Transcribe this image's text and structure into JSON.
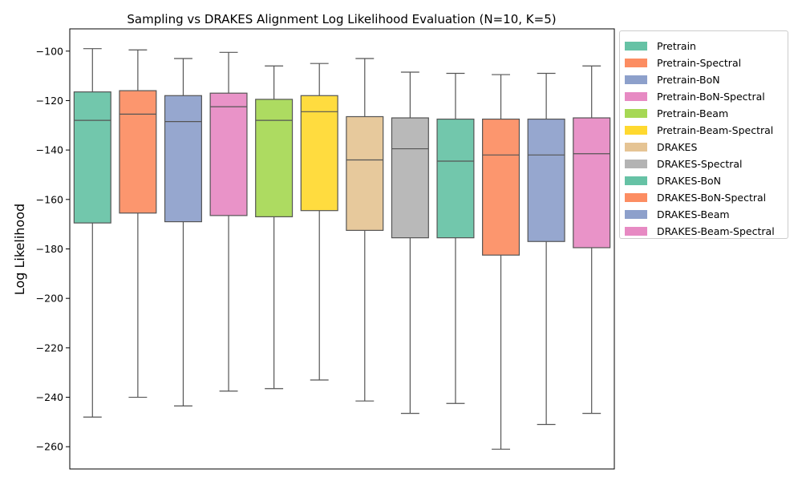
{
  "chart_data": {
    "type": "box",
    "title": "Sampling vs DRAKES Alignment Log Likelihood Evaluation (N=10, K=5)",
    "xlabel": "",
    "ylabel": "Log Likelihood",
    "ylim": [
      -269,
      -91
    ],
    "yticks": [
      -100,
      -120,
      -140,
      -160,
      -180,
      -200,
      -220,
      -240,
      -260
    ],
    "ytick_labels": [
      "−100",
      "−120",
      "−140",
      "−160",
      "−180",
      "−200",
      "−220",
      "−240",
      "−260"
    ],
    "grid": false,
    "legend_position": "outside-top-right",
    "series": [
      {
        "name": "Pretrain",
        "color": "#66c2a5",
        "whisker_low": -248,
        "q1": -169.5,
        "median": -128,
        "q3": -116.5,
        "whisker_high": -99
      },
      {
        "name": "Pretrain-Spectral",
        "color": "#fc8d62",
        "whisker_low": -240,
        "q1": -165.5,
        "median": -125.5,
        "q3": -116,
        "whisker_high": -99.5
      },
      {
        "name": "Pretrain-BoN",
        "color": "#8da0cb",
        "whisker_low": -243.5,
        "q1": -169,
        "median": -128.5,
        "q3": -118,
        "whisker_high": -103
      },
      {
        "name": "Pretrain-BoN-Spectral",
        "color": "#e78ac3",
        "whisker_low": -237.5,
        "q1": -166.5,
        "median": -122.5,
        "q3": -117,
        "whisker_high": -100.5
      },
      {
        "name": "Pretrain-Beam",
        "color": "#a6d854",
        "whisker_low": -236.5,
        "q1": -167,
        "median": -128,
        "q3": -119.5,
        "whisker_high": -106
      },
      {
        "name": "Pretrain-Beam-Spectral",
        "color": "#ffd92f",
        "whisker_low": -233,
        "q1": -164.5,
        "median": -124.5,
        "q3": -118,
        "whisker_high": -105
      },
      {
        "name": "DRAKES",
        "color": "#e5c494",
        "whisker_low": -241.5,
        "q1": -172.5,
        "median": -144,
        "q3": -126.5,
        "whisker_high": -103
      },
      {
        "name": "DRAKES-Spectral",
        "color": "#b3b3b3",
        "whisker_low": -246.5,
        "q1": -175.5,
        "median": -139.5,
        "q3": -127,
        "whisker_high": -108.5
      },
      {
        "name": "DRAKES-BoN",
        "color": "#66c2a5",
        "whisker_low": -242.5,
        "q1": -175.5,
        "median": -144.5,
        "q3": -127.5,
        "whisker_high": -109
      },
      {
        "name": "DRAKES-BoN-Spectral",
        "color": "#fc8d62",
        "whisker_low": -261,
        "q1": -182.5,
        "median": -142,
        "q3": -127.5,
        "whisker_high": -109.5
      },
      {
        "name": "DRAKES-Beam",
        "color": "#8da0cb",
        "whisker_low": -251,
        "q1": -177,
        "median": -142,
        "q3": -127.5,
        "whisker_high": -109
      },
      {
        "name": "DRAKES-Beam-Spectral",
        "color": "#e78ac3",
        "whisker_low": -246.5,
        "q1": -179.5,
        "median": -141.5,
        "q3": -127,
        "whisker_high": -106
      }
    ]
  }
}
